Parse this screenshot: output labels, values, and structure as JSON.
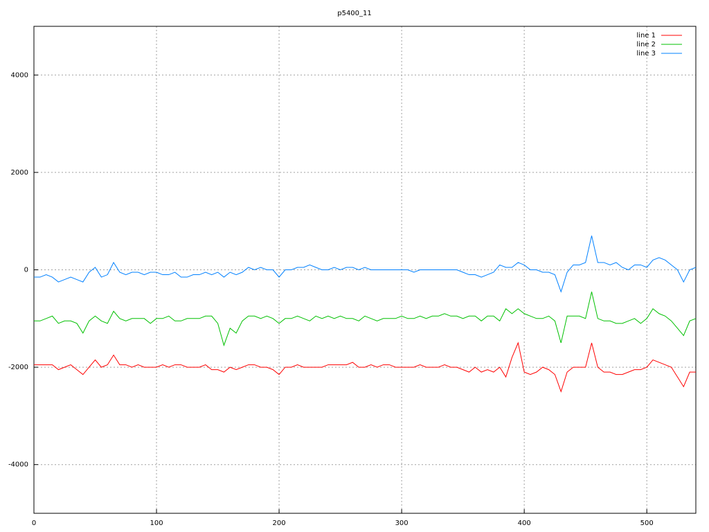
{
  "chart_data": {
    "type": "line",
    "title": "p5400_11",
    "x": [
      0,
      5,
      10,
      15,
      20,
      25,
      30,
      35,
      40,
      45,
      50,
      55,
      60,
      65,
      70,
      75,
      80,
      85,
      90,
      95,
      100,
      105,
      110,
      115,
      120,
      125,
      130,
      135,
      140,
      145,
      150,
      155,
      160,
      165,
      170,
      175,
      180,
      185,
      190,
      195,
      200,
      205,
      210,
      215,
      220,
      225,
      230,
      235,
      240,
      245,
      250,
      255,
      260,
      265,
      270,
      275,
      280,
      285,
      290,
      295,
      300,
      305,
      310,
      315,
      320,
      325,
      330,
      335,
      340,
      345,
      350,
      355,
      360,
      365,
      370,
      375,
      380,
      385,
      390,
      395,
      400,
      405,
      410,
      415,
      420,
      425,
      430,
      435,
      440,
      445,
      450,
      455,
      460,
      465,
      470,
      475,
      480,
      485,
      490,
      495,
      500,
      505,
      510,
      515,
      520,
      525,
      530,
      535,
      540
    ],
    "series": [
      {
        "name": "line 1",
        "color": "#ff0000",
        "values": [
          -1950,
          -1950,
          -1950,
          -1950,
          -2050,
          -2000,
          -1950,
          -2050,
          -2150,
          -2000,
          -1850,
          -2000,
          -1950,
          -1750,
          -1950,
          -1950,
          -2000,
          -1950,
          -2000,
          -2000,
          -2000,
          -1950,
          -2000,
          -1950,
          -1950,
          -2000,
          -2000,
          -2000,
          -1950,
          -2050,
          -2050,
          -2100,
          -2000,
          -2050,
          -2000,
          -1950,
          -1950,
          -2000,
          -2000,
          -2050,
          -2150,
          -2000,
          -2000,
          -1950,
          -2000,
          -2000,
          -2000,
          -2000,
          -1950,
          -1950,
          -1950,
          -1950,
          -1900,
          -2000,
          -2000,
          -1950,
          -2000,
          -1950,
          -1950,
          -2000,
          -2000,
          -2000,
          -2000,
          -1950,
          -2000,
          -2000,
          -2000,
          -1950,
          -2000,
          -2000,
          -2050,
          -2100,
          -2000,
          -2100,
          -2050,
          -2100,
          -2000,
          -2200,
          -1800,
          -1500,
          -2100,
          -2150,
          -2100,
          -2000,
          -2050,
          -2150,
          -2500,
          -2100,
          -2000,
          -2000,
          -2000,
          -1500,
          -2000,
          -2100,
          -2100,
          -2150,
          -2150,
          -2100,
          -2050,
          -2050,
          -2000,
          -1850,
          -1900,
          -1950,
          -2000,
          -2200,
          -2400,
          -2100,
          -2100
        ]
      },
      {
        "name": "line 2",
        "color": "#00c000",
        "values": [
          -1050,
          -1050,
          -1000,
          -950,
          -1100,
          -1050,
          -1050,
          -1100,
          -1300,
          -1050,
          -950,
          -1050,
          -1100,
          -850,
          -1000,
          -1050,
          -1000,
          -1000,
          -1000,
          -1100,
          -1000,
          -1000,
          -950,
          -1050,
          -1050,
          -1000,
          -1000,
          -1000,
          -950,
          -950,
          -1100,
          -1550,
          -1200,
          -1300,
          -1050,
          -950,
          -950,
          -1000,
          -950,
          -1000,
          -1100,
          -1000,
          -1000,
          -950,
          -1000,
          -1050,
          -950,
          -1000,
          -950,
          -1000,
          -950,
          -1000,
          -1000,
          -1050,
          -950,
          -1000,
          -1050,
          -1000,
          -1000,
          -1000,
          -950,
          -1000,
          -1000,
          -950,
          -1000,
          -950,
          -950,
          -900,
          -950,
          -950,
          -1000,
          -950,
          -950,
          -1050,
          -950,
          -950,
          -1050,
          -800,
          -900,
          -800,
          -900,
          -950,
          -1000,
          -1000,
          -950,
          -1050,
          -1500,
          -950,
          -950,
          -950,
          -1000,
          -450,
          -1000,
          -1050,
          -1050,
          -1100,
          -1100,
          -1050,
          -1000,
          -1100,
          -1000,
          -800,
          -900,
          -950,
          -1050,
          -1200,
          -1350,
          -1050,
          -1000
        ]
      },
      {
        "name": "line 3",
        "color": "#0080ff",
        "values": [
          -150,
          -150,
          -100,
          -150,
          -250,
          -200,
          -150,
          -200,
          -250,
          -50,
          50,
          -150,
          -100,
          150,
          -50,
          -100,
          -50,
          -50,
          -100,
          -50,
          -50,
          -100,
          -100,
          -50,
          -150,
          -150,
          -100,
          -100,
          -50,
          -100,
          -50,
          -150,
          -50,
          -100,
          -50,
          50,
          0,
          50,
          0,
          0,
          -150,
          0,
          0,
          50,
          50,
          100,
          50,
          0,
          0,
          50,
          0,
          50,
          50,
          0,
          50,
          0,
          0,
          0,
          0,
          0,
          0,
          0,
          -50,
          0,
          0,
          0,
          0,
          0,
          0,
          0,
          -50,
          -100,
          -100,
          -150,
          -100,
          -50,
          100,
          50,
          50,
          150,
          100,
          0,
          0,
          -50,
          -50,
          -100,
          -450,
          -50,
          100,
          100,
          150,
          700,
          150,
          150,
          100,
          150,
          50,
          0,
          100,
          100,
          50,
          200,
          250,
          200,
          100,
          0,
          -250,
          0,
          50
        ]
      }
    ],
    "xlim": [
      0,
      540
    ],
    "xticks": [
      0,
      100,
      200,
      300,
      400,
      500
    ],
    "ylim": [
      -5000,
      5000
    ],
    "yticks": [
      -4000,
      -2000,
      0,
      2000,
      4000
    ],
    "grid": true,
    "legend": "top-right"
  }
}
